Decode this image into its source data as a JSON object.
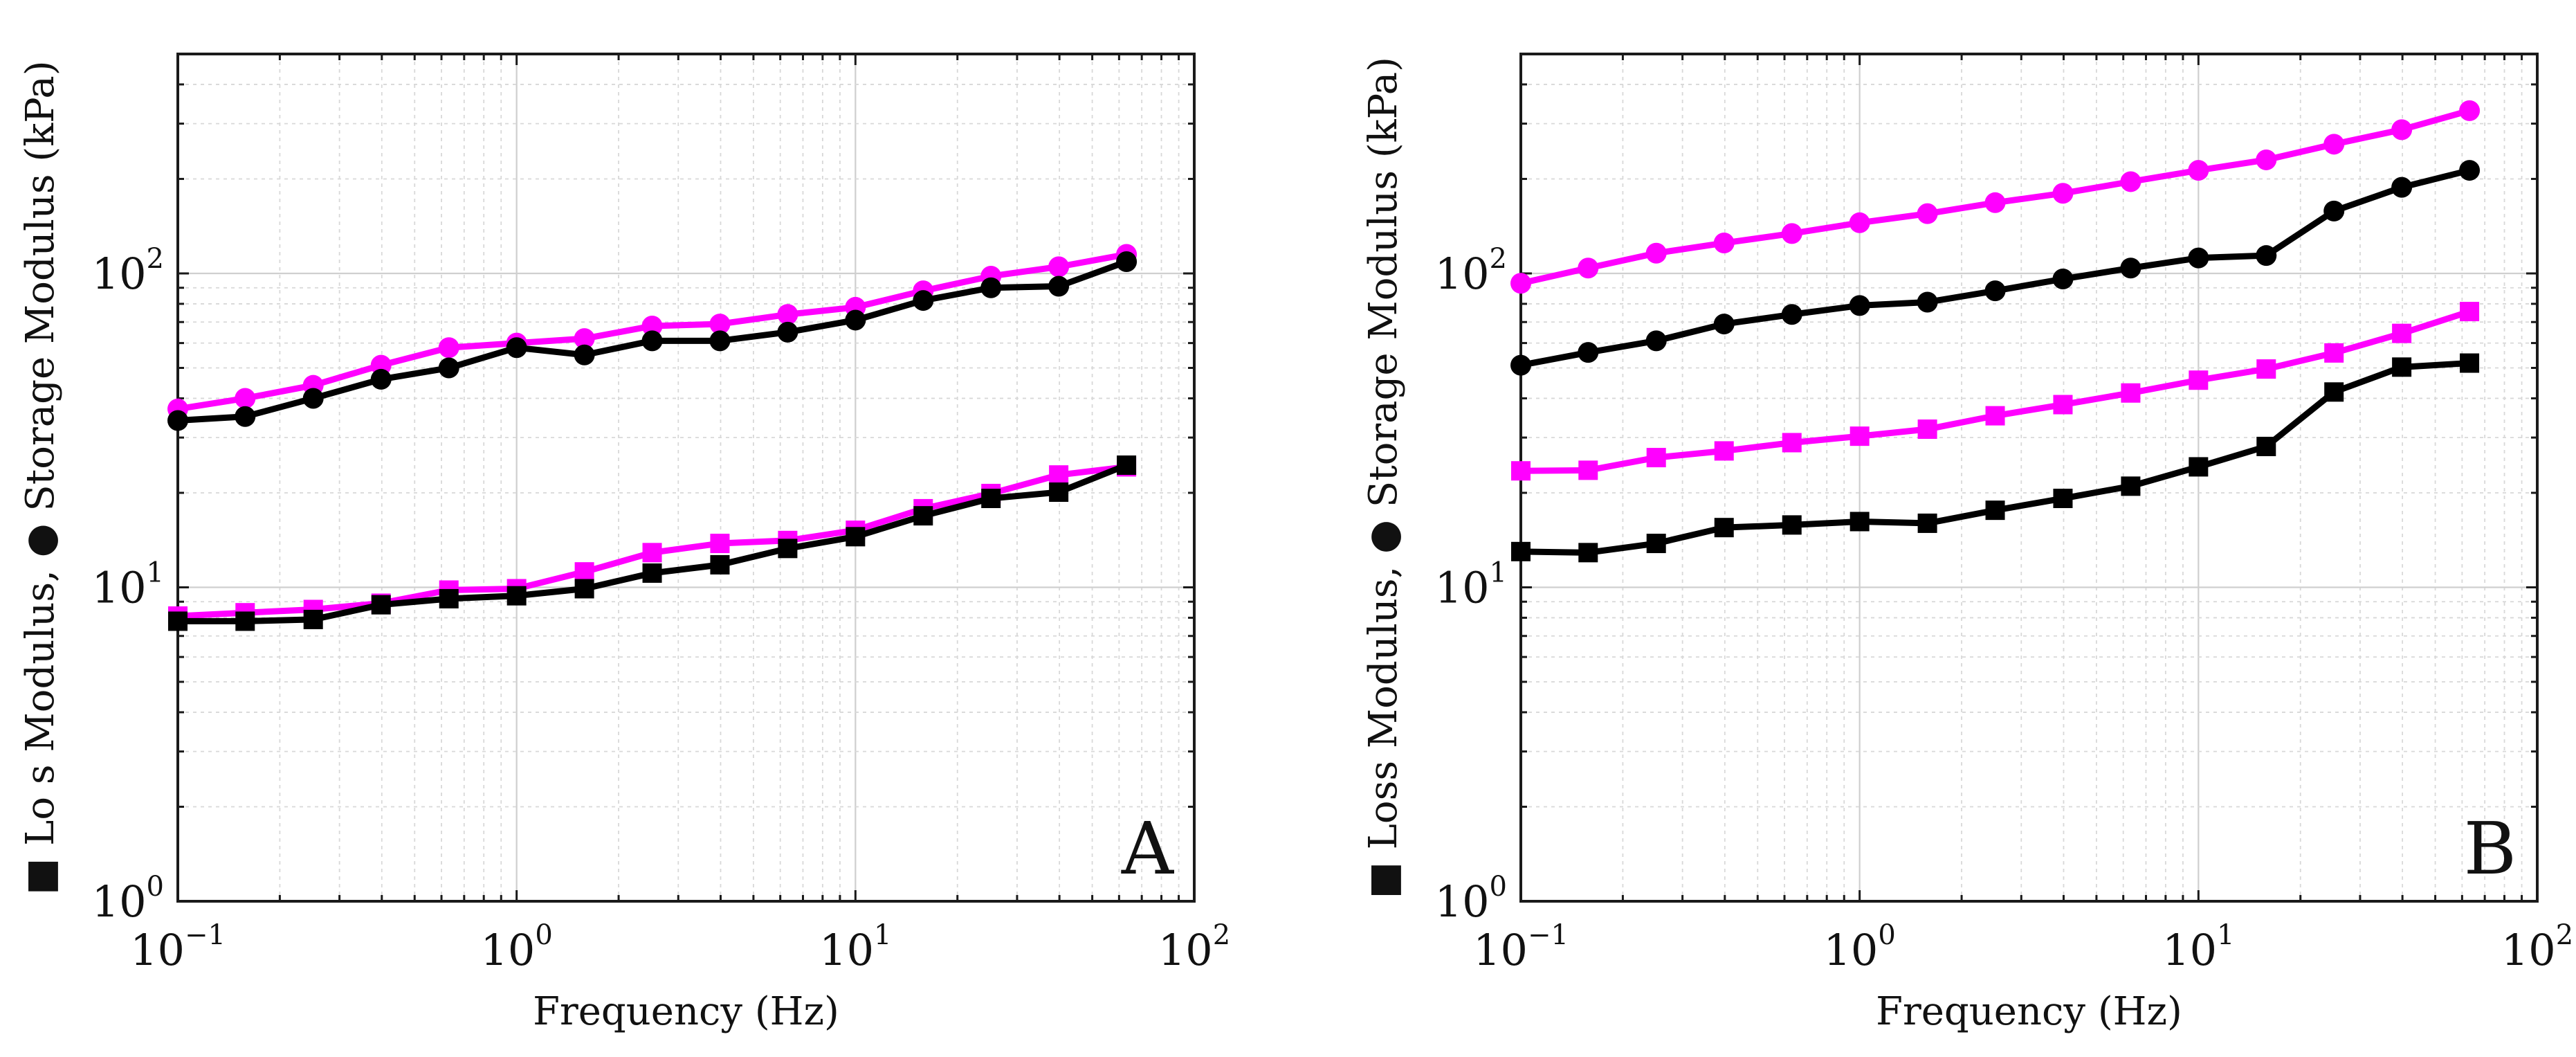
{
  "chart_data": [
    {
      "panel": "A",
      "type": "line",
      "x_scale": "log",
      "y_scale": "log",
      "xlim": [
        0.1,
        100
      ],
      "ylim": [
        1,
        500
      ],
      "xlabel": "Frequency (Hz)",
      "ylabel": "Lo s Modulus, Storage Modulus (kPa)",
      "ylabel_parts": [
        "Lo s Modulus,",
        "Storage Modulus (kPa)"
      ],
      "x_ticks": [
        {
          "base": "10",
          "exp": "−1"
        },
        {
          "base": "10",
          "exp": "0"
        },
        {
          "base": "10",
          "exp": "1"
        },
        {
          "base": "10",
          "exp": "2"
        }
      ],
      "y_ticks": [
        {
          "base": "10",
          "exp": "0"
        },
        {
          "base": "10",
          "exp": "1"
        },
        {
          "base": "10",
          "exp": "2"
        }
      ],
      "grid": true,
      "x": [
        0.1,
        0.158,
        0.251,
        0.398,
        0.631,
        1.0,
        1.585,
        2.512,
        3.981,
        6.31,
        10.0,
        15.85,
        25.12,
        39.81,
        63.1
      ],
      "series": [
        {
          "name": "Storage Modulus (magenta)",
          "marker": "circle",
          "color": "#ff00ff",
          "values": [
            37,
            40,
            44,
            51,
            58,
            60,
            62,
            68,
            69,
            74,
            78,
            88,
            98,
            105,
            115
          ]
        },
        {
          "name": "Storage Modulus (black)",
          "marker": "circle",
          "color": "#000000",
          "values": [
            34,
            35,
            40,
            46,
            50,
            58,
            55,
            61,
            61,
            65,
            71,
            82,
            90,
            91,
            109
          ]
        },
        {
          "name": "Loss Modulus (magenta)",
          "marker": "square",
          "color": "#ff00ff",
          "values": [
            8.1,
            8.3,
            8.5,
            8.9,
            9.8,
            9.9,
            11.2,
            12.9,
            13.8,
            14.1,
            15.2,
            17.8,
            19.9,
            22.8,
            24.2
          ]
        },
        {
          "name": "Loss Modulus (black)",
          "marker": "square",
          "color": "#000000",
          "values": [
            7.8,
            7.8,
            7.9,
            8.8,
            9.2,
            9.4,
            9.9,
            11.1,
            11.8,
            13.3,
            14.5,
            16.9,
            19.2,
            20.1,
            24.5
          ]
        }
      ],
      "letter": "A"
    },
    {
      "panel": "B",
      "type": "line",
      "x_scale": "log",
      "y_scale": "log",
      "xlim": [
        0.1,
        100
      ],
      "ylim": [
        1,
        500
      ],
      "xlabel": "Frequency (Hz)",
      "ylabel": "Loss Modulus, Storage Modulus (kPa)",
      "ylabel_parts": [
        "Loss Modulus,",
        "Storage Modulus (kPa)"
      ],
      "x_ticks": [
        {
          "base": "10",
          "exp": "−1"
        },
        {
          "base": "10",
          "exp": "0"
        },
        {
          "base": "10",
          "exp": "1"
        },
        {
          "base": "10",
          "exp": "2"
        }
      ],
      "y_ticks": [
        {
          "base": "10",
          "exp": "0"
        },
        {
          "base": "10",
          "exp": "1"
        },
        {
          "base": "10",
          "exp": "2"
        }
      ],
      "grid": true,
      "x": [
        0.1,
        0.158,
        0.251,
        0.398,
        0.631,
        1.0,
        1.585,
        2.512,
        3.981,
        6.31,
        10.0,
        15.85,
        25.12,
        39.81,
        63.1
      ],
      "series": [
        {
          "name": "Storage Modulus (magenta)",
          "marker": "circle",
          "color": "#ff00ff",
          "values": [
            93,
            104,
            116,
            125,
            134,
            145,
            155,
            168,
            180,
            196,
            213,
            230,
            258,
            287,
            330
          ]
        },
        {
          "name": "Storage Modulus (black)",
          "marker": "circle",
          "color": "#000000",
          "values": [
            51,
            56,
            61,
            69,
            74,
            79,
            81,
            88,
            96,
            104,
            112,
            114,
            158,
            188,
            213
          ]
        },
        {
          "name": "Loss Modulus (magenta)",
          "marker": "square",
          "color": "#ff00ff",
          "values": [
            23.5,
            23.6,
            25.9,
            27.2,
            28.9,
            30.3,
            31.9,
            35.2,
            38.2,
            41.6,
            45.7,
            49.6,
            55.8,
            64.4,
            75.6
          ]
        },
        {
          "name": "Loss Modulus (black)",
          "marker": "square",
          "color": "#000000",
          "values": [
            13.0,
            12.9,
            13.8,
            15.5,
            15.8,
            16.2,
            16.0,
            17.6,
            19.2,
            21.0,
            24.2,
            28.1,
            41.9,
            50.3,
            51.8
          ]
        }
      ],
      "letter": "B"
    }
  ]
}
